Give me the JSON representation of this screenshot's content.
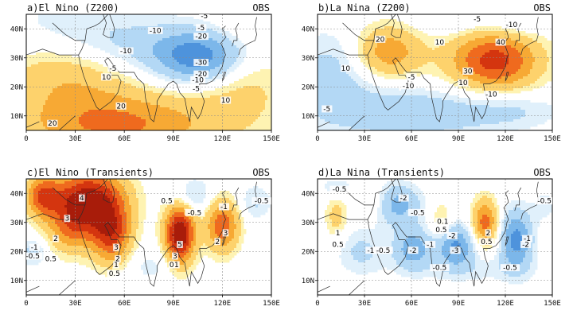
{
  "figure": {
    "panels": [
      {
        "id": "a",
        "title": "a)El Nino (Z200)",
        "tag": "OBS",
        "x_ticks": [
          "0",
          "30E",
          "60E",
          "90E",
          "120E",
          "150E"
        ],
        "y_ticks": [
          "10N",
          "20N",
          "30N",
          "40N"
        ],
        "contour_labels": [
          {
            "text": "-5",
            "lon": 109,
            "lat": 44
          },
          {
            "text": "-5",
            "lon": 107,
            "lat": 40
          },
          {
            "text": "-10",
            "lon": 79,
            "lat": 39
          },
          {
            "text": "-20",
            "lon": 107,
            "lat": 37
          },
          {
            "text": "-10",
            "lon": 61,
            "lat": 32
          },
          {
            "text": "-30",
            "lon": 107,
            "lat": 28
          },
          {
            "text": "-20",
            "lon": 107,
            "lat": 24
          },
          {
            "text": "-10",
            "lon": 105,
            "lat": 22
          },
          {
            "text": "-5",
            "lon": 53,
            "lat": 26
          },
          {
            "text": "10",
            "lon": 49,
            "lat": 23
          },
          {
            "text": "-5",
            "lon": 104,
            "lat": 19
          },
          {
            "text": "10",
            "lon": 122,
            "lat": 15
          },
          {
            "text": "20",
            "lon": 58,
            "lat": 13
          },
          {
            "text": "20",
            "lon": 16,
            "lat": 7
          }
        ]
      },
      {
        "id": "b",
        "title": "b)La Nina (Z200)",
        "tag": "OBS",
        "x_ticks": [
          "0",
          "30E",
          "60E",
          "90E",
          "120E",
          "150E"
        ],
        "y_ticks": [
          "10N",
          "20N",
          "30N",
          "40N"
        ],
        "contour_labels": [
          {
            "text": "-5",
            "lon": 102,
            "lat": 43
          },
          {
            "text": "-10",
            "lon": 124,
            "lat": 41
          },
          {
            "text": "20",
            "lon": 40,
            "lat": 36
          },
          {
            "text": "10",
            "lon": 78,
            "lat": 35
          },
          {
            "text": "40",
            "lon": 117,
            "lat": 35
          },
          {
            "text": "10",
            "lon": 18,
            "lat": 26
          },
          {
            "text": "-5",
            "lon": 60,
            "lat": 23
          },
          {
            "text": "-10",
            "lon": 58,
            "lat": 20
          },
          {
            "text": "30",
            "lon": 96,
            "lat": 25
          },
          {
            "text": "10",
            "lon": 93,
            "lat": 21
          },
          {
            "text": "-5",
            "lon": 6,
            "lat": 12
          },
          {
            "text": "-10",
            "lon": 111,
            "lat": 17
          }
        ]
      },
      {
        "id": "c",
        "title": "c)El Nino (Transients)",
        "tag": "OBS",
        "x_ticks": [
          "0",
          "30E",
          "60E",
          "90E",
          "120E",
          "150E"
        ],
        "y_ticks": [
          "10N",
          "20N",
          "30N",
          "40N"
        ],
        "contour_labels": [
          {
            "text": "4",
            "lon": 34,
            "lat": 38
          },
          {
            "text": "0.5",
            "lon": 86,
            "lat": 37
          },
          {
            "text": "-0.5",
            "lon": 103,
            "lat": 33
          },
          {
            "text": "-1",
            "lon": 121,
            "lat": 35
          },
          {
            "text": "-0.5",
            "lon": 144,
            "lat": 37
          },
          {
            "text": "3",
            "lon": 25,
            "lat": 31
          },
          {
            "text": "2",
            "lon": 18,
            "lat": 24
          },
          {
            "text": "3",
            "lon": 122,
            "lat": 26
          },
          {
            "text": "2",
            "lon": 117,
            "lat": 23
          },
          {
            "text": "-1",
            "lon": 5,
            "lat": 21
          },
          {
            "text": "-0.5",
            "lon": 4,
            "lat": 18
          },
          {
            "text": "0.5",
            "lon": 15,
            "lat": 17
          },
          {
            "text": "3",
            "lon": 55,
            "lat": 21
          },
          {
            "text": "2",
            "lon": 56,
            "lat": 17
          },
          {
            "text": "1",
            "lon": 55,
            "lat": 15
          },
          {
            "text": "0.5",
            "lon": 54,
            "lat": 12
          },
          {
            "text": "5",
            "lon": 94,
            "lat": 22
          },
          {
            "text": "3",
            "lon": 91,
            "lat": 18
          },
          {
            "text": "0",
            "lon": 89,
            "lat": 15
          },
          {
            "text": "1",
            "lon": 92,
            "lat": 15
          }
        ]
      },
      {
        "id": "d",
        "title": "d)La Nina (Transients)",
        "tag": "OBS",
        "x_ticks": [
          "0",
          "30E",
          "60E",
          "90E",
          "120E",
          "150E"
        ],
        "y_ticks": [
          "10N",
          "20N",
          "30N",
          "40N"
        ],
        "contour_labels": [
          {
            "text": "-0.5",
            "lon": 14,
            "lat": 41
          },
          {
            "text": "-2",
            "lon": 55,
            "lat": 38
          },
          {
            "text": "-0.5",
            "lon": 64,
            "lat": 33
          },
          {
            "text": "-0.5",
            "lon": 145,
            "lat": 37
          },
          {
            "text": "0.1",
            "lon": 80,
            "lat": 30
          },
          {
            "text": "0.5",
            "lon": 79,
            "lat": 27
          },
          {
            "text": "2",
            "lon": 109,
            "lat": 26
          },
          {
            "text": "0.5",
            "lon": 108,
            "lat": 23
          },
          {
            "text": "1",
            "lon": 13,
            "lat": 26
          },
          {
            "text": "0.5",
            "lon": 13,
            "lat": 22
          },
          {
            "text": "-1",
            "lon": 34,
            "lat": 20
          },
          {
            "text": "-0.5",
            "lon": 42,
            "lat": 20
          },
          {
            "text": "-2",
            "lon": 61,
            "lat": 20
          },
          {
            "text": "-1",
            "lon": 72,
            "lat": 22
          },
          {
            "text": "-2",
            "lon": 86,
            "lat": 25
          },
          {
            "text": "-3",
            "lon": 88,
            "lat": 20
          },
          {
            "text": "-1",
            "lon": 134,
            "lat": 24
          },
          {
            "text": "-2",
            "lon": 133,
            "lat": 22
          },
          {
            "text": "-0.5",
            "lon": 78,
            "lat": 14
          },
          {
            "text": "-0.5",
            "lon": 123,
            "lat": 14
          }
        ]
      }
    ],
    "palette": {
      "pos": [
        "#fef3b2",
        "#fdd26c",
        "#f7a934",
        "#ef6a1e",
        "#d4350f",
        "#a81c0a"
      ],
      "neg": [
        "#e0f0fb",
        "#b3d8f5",
        "#7cb7ea",
        "#4e93dc",
        "#2e6fc7",
        "#1c4f9e"
      ],
      "land_line": "#2a2a2a",
      "contour_line": "#000000",
      "grid_line": "#8a8a8a"
    },
    "fields": {
      "a": {
        "base": 0,
        "blobs": [
          {
            "lon": 106,
            "lat": 30,
            "rx": 26,
            "ry": 9,
            "amp": -34
          },
          {
            "lon": 68,
            "lat": 34,
            "rx": 46,
            "ry": 10,
            "amp": -13
          },
          {
            "lon": 22,
            "lat": 42,
            "rx": 40,
            "ry": 14,
            "amp": -6
          },
          {
            "lon": 56,
            "lat": 7,
            "rx": 60,
            "ry": 11,
            "amp": 32
          },
          {
            "lon": 25,
            "lat": 24,
            "rx": 40,
            "ry": 12,
            "amp": 18
          },
          {
            "lon": 132,
            "lat": 20,
            "rx": 30,
            "ry": 14,
            "amp": 12
          },
          {
            "lon": 133,
            "lat": 42,
            "rx": 22,
            "ry": 6,
            "amp": 6
          }
        ]
      },
      "b": {
        "base": 0,
        "blobs": [
          {
            "lon": 113,
            "lat": 29,
            "rx": 28,
            "ry": 10,
            "amp": 45
          },
          {
            "lon": 45,
            "lat": 32,
            "rx": 22,
            "ry": 9,
            "amp": 27
          },
          {
            "lon": 10,
            "lat": 25,
            "rx": 26,
            "ry": 14,
            "amp": -14
          },
          {
            "lon": 60,
            "lat": 11,
            "rx": 60,
            "ry": 9,
            "amp": -17
          },
          {
            "lon": 128,
            "lat": 42,
            "rx": 20,
            "ry": 5,
            "amp": -8
          },
          {
            "lon": 87,
            "lat": 43,
            "rx": 24,
            "ry": 5,
            "amp": -7
          },
          {
            "lon": 125,
            "lat": 12,
            "rx": 30,
            "ry": 6,
            "amp": -8
          }
        ]
      },
      "c": {
        "base": 0,
        "blobs": [
          {
            "lon": 38,
            "lat": 38,
            "rx": 22,
            "ry": 10,
            "amp": 5.5
          },
          {
            "lon": 10,
            "lat": 39,
            "rx": 10,
            "ry": 7,
            "amp": 3.5
          },
          {
            "lon": 52,
            "lat": 26,
            "rx": 12,
            "ry": 10,
            "amp": 4.2
          },
          {
            "lon": 28,
            "lat": 28,
            "rx": 14,
            "ry": 9,
            "amp": 2.5
          },
          {
            "lon": 94,
            "lat": 26,
            "rx": 9,
            "ry": 10,
            "amp": 6.2
          },
          {
            "lon": 120,
            "lat": 29,
            "rx": 10,
            "ry": 9,
            "amp": 3.8
          },
          {
            "lon": 102,
            "lat": 39,
            "rx": 12,
            "ry": 6,
            "amp": -1.4
          },
          {
            "lon": 140,
            "lat": 37,
            "rx": 10,
            "ry": 6,
            "amp": -1.1
          },
          {
            "lon": 4,
            "lat": 20,
            "rx": 8,
            "ry": 5,
            "amp": -1.3
          },
          {
            "lon": 76,
            "lat": 15,
            "rx": 14,
            "ry": 6,
            "amp": -0.7
          }
        ]
      },
      "d": {
        "base": 0,
        "blobs": [
          {
            "lon": 107,
            "lat": 30,
            "rx": 8,
            "ry": 8,
            "amp": 3.5
          },
          {
            "lon": 79,
            "lat": 30,
            "rx": 7,
            "ry": 7,
            "amp": 1.2
          },
          {
            "lon": 12,
            "lat": 32,
            "rx": 7,
            "ry": 8,
            "amp": 1.4
          },
          {
            "lon": 35,
            "lat": 37,
            "rx": 9,
            "ry": 5,
            "amp": 0.7
          },
          {
            "lon": 52,
            "lat": 36,
            "rx": 14,
            "ry": 7,
            "amp": -2.4
          },
          {
            "lon": 61,
            "lat": 21,
            "rx": 12,
            "ry": 7,
            "amp": -2.6
          },
          {
            "lon": 88,
            "lat": 22,
            "rx": 12,
            "ry": 7,
            "amp": -3.2
          },
          {
            "lon": 127,
            "lat": 24,
            "rx": 10,
            "ry": 10,
            "amp": -3.4
          },
          {
            "lon": 28,
            "lat": 20,
            "rx": 16,
            "ry": 8,
            "amp": -1.2
          },
          {
            "lon": 12,
            "lat": 42,
            "rx": 12,
            "ry": 4,
            "amp": -0.9
          },
          {
            "lon": 145,
            "lat": 36,
            "rx": 8,
            "ry": 6,
            "amp": -0.7
          },
          {
            "lon": 100,
            "lat": 14,
            "rx": 40,
            "ry": 5,
            "amp": -0.7
          }
        ]
      }
    }
  }
}
